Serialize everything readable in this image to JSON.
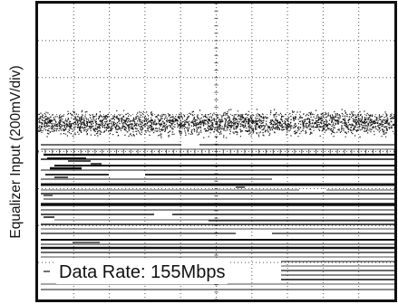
{
  "chart_data": {
    "type": "eye-diagram",
    "ylabel": "Equalizer Input (200mV/div)",
    "annotation": "Data Rate: 155Mbps",
    "grid": true,
    "grid_divisions": {
      "x": 10,
      "y": 8
    },
    "colors": {
      "trace": "#111111",
      "grid": "#555555",
      "frame": "#111111",
      "background": "#ffffff"
    }
  }
}
